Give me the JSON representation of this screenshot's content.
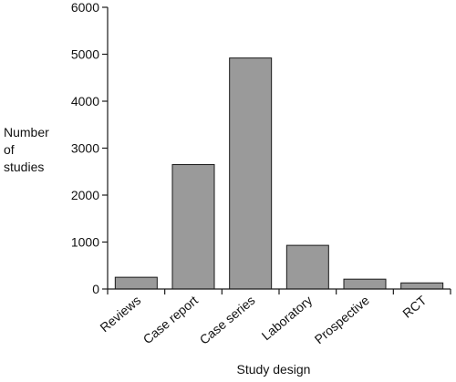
{
  "chart_data": {
    "type": "bar",
    "categories": [
      "Reviews",
      "Case report",
      "Case series",
      "Laboratory",
      "Prospective",
      "RCT"
    ],
    "values": [
      250,
      2650,
      4920,
      930,
      210,
      130
    ],
    "ylabel": [
      "Number",
      "of",
      "studies"
    ],
    "xlabel": "Study design",
    "ylim": [
      0,
      6000
    ],
    "yticks": [
      0,
      1000,
      2000,
      3000,
      4000,
      5000,
      6000
    ],
    "ytick_labels": [
      "0",
      "1000",
      "2000",
      "3000",
      "4000",
      "5000",
      "6000"
    ],
    "grid": false,
    "legend": "none",
    "colors": {
      "bar_fill": "#9a9a9a",
      "bar_stroke": "#1a1a1a",
      "axis": "#1a1a1a"
    }
  }
}
